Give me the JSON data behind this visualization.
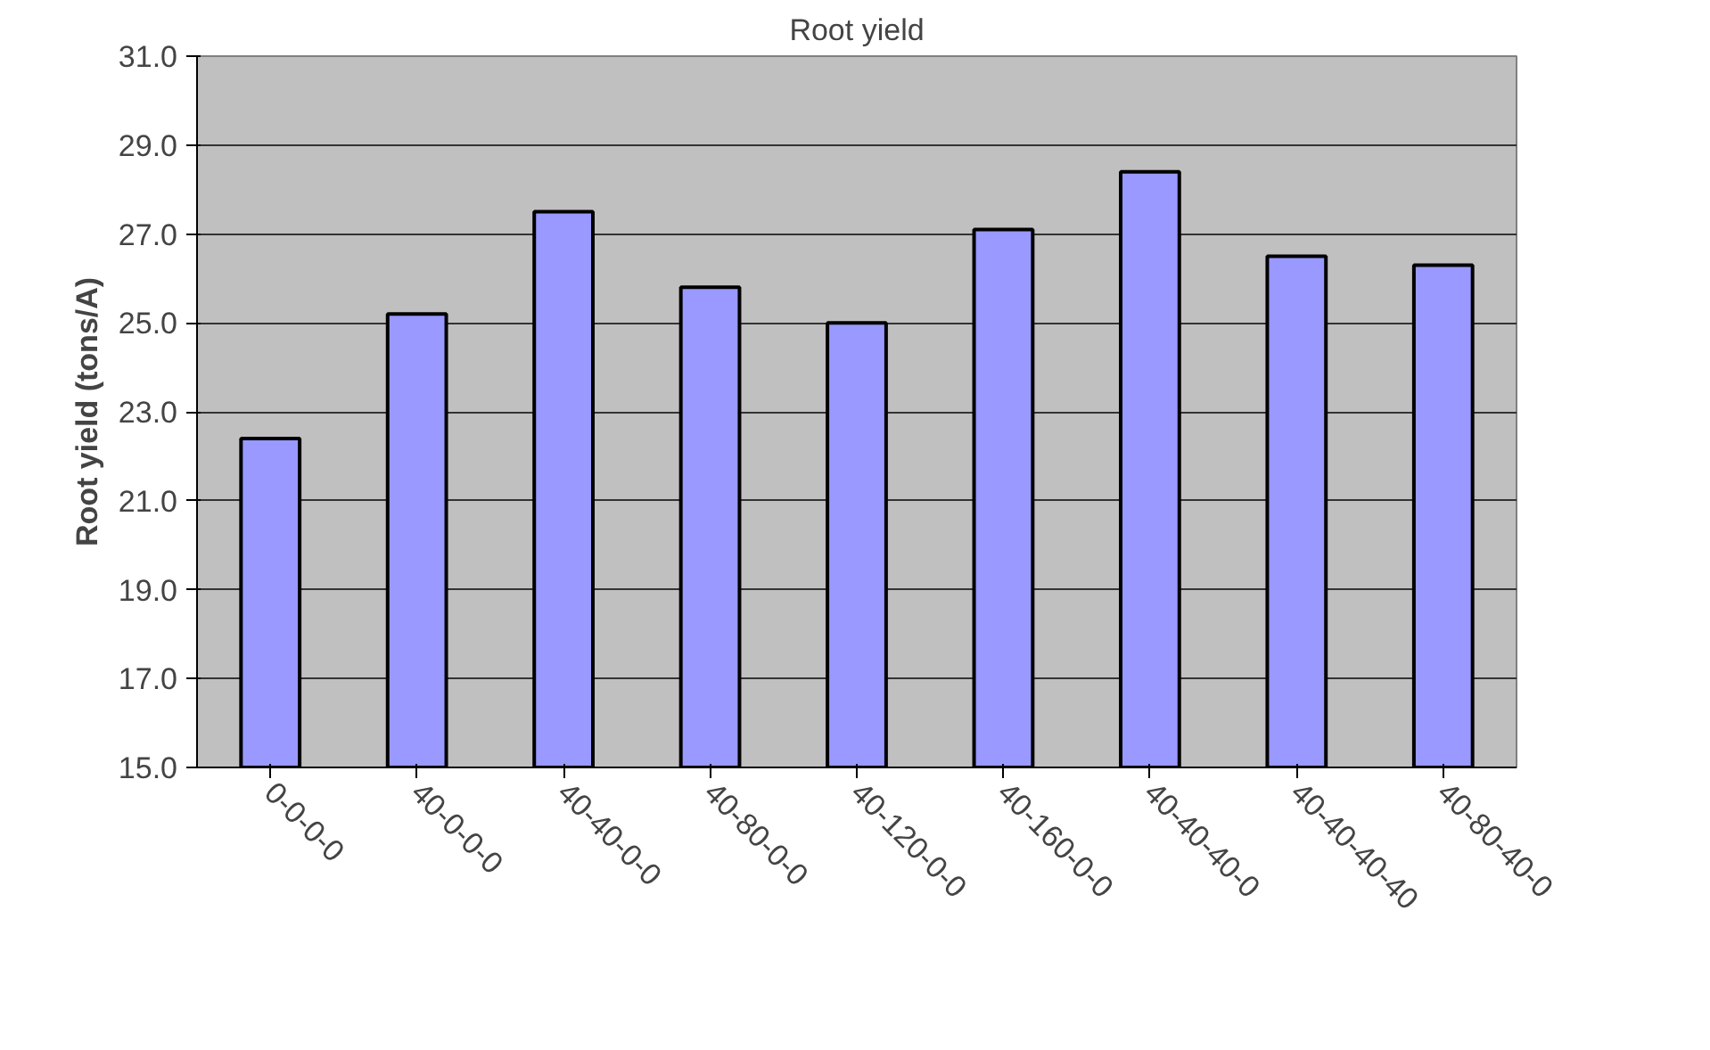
{
  "chart_data": {
    "type": "bar",
    "title": "Root yield",
    "ylabel": "Root yield (tons/A)",
    "categories": [
      "0-0-0-0",
      "40-0-0-0",
      "40-40-0-0",
      "40-80-0-0",
      "40-120-0-0",
      "40-160-0-0",
      "40-40-40-0",
      "40-40-40-40",
      "40-80-40-0"
    ],
    "values": [
      22.4,
      25.2,
      27.5,
      25.8,
      25.0,
      27.1,
      28.4,
      26.5,
      26.3
    ],
    "color": "#9999ff",
    "ylim": [
      15,
      31
    ],
    "yticks": [
      {
        "value": 15,
        "label": "15.0"
      },
      {
        "value": 17,
        "label": "17.0"
      },
      {
        "value": 19,
        "label": "19.0"
      },
      {
        "value": 21,
        "label": "21.0"
      },
      {
        "value": 23,
        "label": "23.0"
      },
      {
        "value": 25,
        "label": "25.0"
      },
      {
        "value": 27,
        "label": "27.0"
      },
      {
        "value": 29,
        "label": "29.0"
      },
      {
        "value": 31,
        "label": "31.0"
      }
    ],
    "grid": "y"
  }
}
